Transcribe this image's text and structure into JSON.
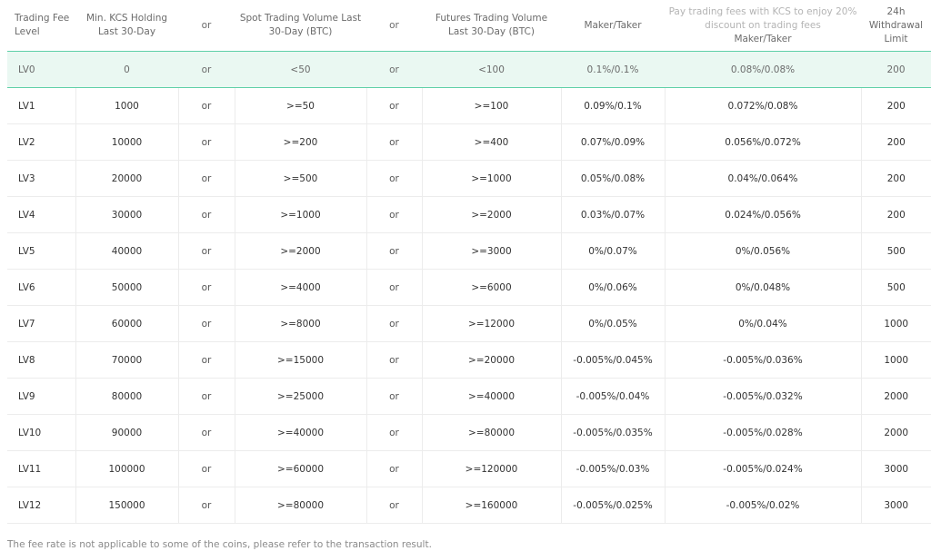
{
  "headers": {
    "level": "Trading Fee Level",
    "kcs": "Min. KCS Holding Last 30-Day",
    "or1": "or",
    "spot": "Spot Trading Volume Last 30-Day (BTC)",
    "or2": "or",
    "futures": "Futures Trading Volume Last 30-Day (BTC)",
    "maker_taker": "Maker/Taker",
    "kcs_promo": "Pay trading fees with KCS to enjoy 20% discount on trading fees",
    "kcs_maker_taker": "Maker/Taker",
    "withdrawal": "24h Withdrawal Limit"
  },
  "rows": [
    {
      "level": "LV0",
      "kcs": "0",
      "or1": "or",
      "spot": "<50",
      "or2": "or",
      "futures": "<100",
      "fee": "0.1%/0.1%",
      "kcs_fee": "0.08%/0.08%",
      "limit": "200"
    },
    {
      "level": "LV1",
      "kcs": "1000",
      "or1": "or",
      "spot": ">=50",
      "or2": "or",
      "futures": ">=100",
      "fee": "0.09%/0.1%",
      "kcs_fee": "0.072%/0.08%",
      "limit": "200"
    },
    {
      "level": "LV2",
      "kcs": "10000",
      "or1": "or",
      "spot": ">=200",
      "or2": "or",
      "futures": ">=400",
      "fee": "0.07%/0.09%",
      "kcs_fee": "0.056%/0.072%",
      "limit": "200"
    },
    {
      "level": "LV3",
      "kcs": "20000",
      "or1": "or",
      "spot": ">=500",
      "or2": "or",
      "futures": ">=1000",
      "fee": "0.05%/0.08%",
      "kcs_fee": "0.04%/0.064%",
      "limit": "200"
    },
    {
      "level": "LV4",
      "kcs": "30000",
      "or1": "or",
      "spot": ">=1000",
      "or2": "or",
      "futures": ">=2000",
      "fee": "0.03%/0.07%",
      "kcs_fee": "0.024%/0.056%",
      "limit": "200"
    },
    {
      "level": "LV5",
      "kcs": "40000",
      "or1": "or",
      "spot": ">=2000",
      "or2": "or",
      "futures": ">=3000",
      "fee": "0%/0.07%",
      "kcs_fee": "0%/0.056%",
      "limit": "500"
    },
    {
      "level": "LV6",
      "kcs": "50000",
      "or1": "or",
      "spot": ">=4000",
      "or2": "or",
      "futures": ">=6000",
      "fee": "0%/0.06%",
      "kcs_fee": "0%/0.048%",
      "limit": "500"
    },
    {
      "level": "LV7",
      "kcs": "60000",
      "or1": "or",
      "spot": ">=8000",
      "or2": "or",
      "futures": ">=12000",
      "fee": "0%/0.05%",
      "kcs_fee": "0%/0.04%",
      "limit": "1000"
    },
    {
      "level": "LV8",
      "kcs": "70000",
      "or1": "or",
      "spot": ">=15000",
      "or2": "or",
      "futures": ">=20000",
      "fee": "-0.005%/0.045%",
      "kcs_fee": "-0.005%/0.036%",
      "limit": "1000"
    },
    {
      "level": "LV9",
      "kcs": "80000",
      "or1": "or",
      "spot": ">=25000",
      "or2": "or",
      "futures": ">=40000",
      "fee": "-0.005%/0.04%",
      "kcs_fee": "-0.005%/0.032%",
      "limit": "2000"
    },
    {
      "level": "LV10",
      "kcs": "90000",
      "or1": "or",
      "spot": ">=40000",
      "or2": "or",
      "futures": ">=80000",
      "fee": "-0.005%/0.035%",
      "kcs_fee": "-0.005%/0.028%",
      "limit": "2000"
    },
    {
      "level": "LV11",
      "kcs": "100000",
      "or1": "or",
      "spot": ">=60000",
      "or2": "or",
      "futures": ">=120000",
      "fee": "-0.005%/0.03%",
      "kcs_fee": "-0.005%/0.024%",
      "limit": "3000"
    },
    {
      "level": "LV12",
      "kcs": "150000",
      "or1": "or",
      "spot": ">=80000",
      "or2": "or",
      "futures": ">=160000",
      "fee": "-0.005%/0.025%",
      "kcs_fee": "-0.005%/0.02%",
      "limit": "3000"
    }
  ],
  "current_level_index": 0,
  "note": "The fee rate is not applicable to some of the coins, please refer to the transaction result.",
  "colors": {
    "highlight_row": "#eaf8f2",
    "accent_line": "#5fd0a8",
    "grid_line": "#ececec"
  }
}
